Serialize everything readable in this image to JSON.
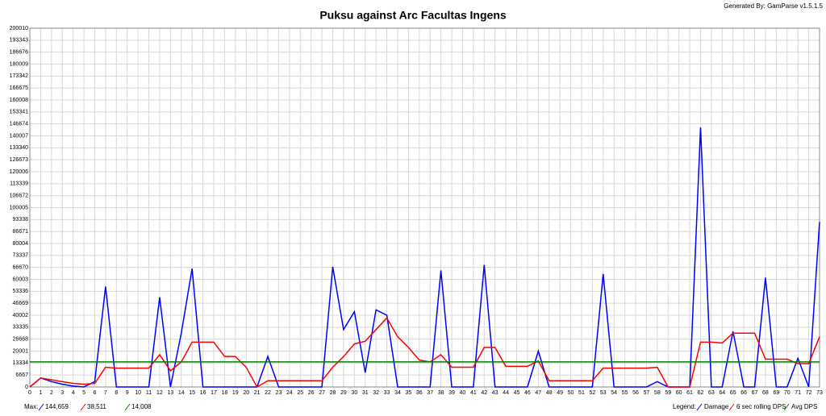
{
  "chart_data": {
    "type": "line",
    "title": "Puksu against Arc Facultas Ingens",
    "credit": "Generated By: GamParse v1.5.1.5",
    "max_label": "Max:",
    "legend_label": "Legend:",
    "x": [
      0,
      1,
      2,
      3,
      4,
      5,
      6,
      7,
      8,
      9,
      10,
      11,
      12,
      13,
      14,
      15,
      16,
      17,
      18,
      19,
      20,
      21,
      22,
      23,
      24,
      25,
      26,
      27,
      28,
      29,
      30,
      31,
      32,
      33,
      34,
      35,
      36,
      37,
      38,
      39,
      40,
      41,
      42,
      43,
      44,
      45,
      46,
      47,
      48,
      49,
      50,
      51,
      52,
      53,
      54,
      55,
      56,
      57,
      58,
      59,
      60,
      61,
      62,
      63,
      64,
      65,
      66,
      67,
      68,
      69,
      70,
      71,
      72,
      73
    ],
    "xlim": [
      0,
      73
    ],
    "xticks": [
      0,
      1,
      2,
      3,
      4,
      5,
      6,
      7,
      8,
      9,
      10,
      11,
      12,
      13,
      14,
      15,
      16,
      17,
      18,
      19,
      20,
      21,
      22,
      23,
      24,
      25,
      26,
      27,
      28,
      29,
      30,
      31,
      32,
      33,
      34,
      35,
      36,
      37,
      38,
      39,
      40,
      41,
      42,
      43,
      44,
      45,
      46,
      47,
      48,
      49,
      50,
      51,
      52,
      53,
      54,
      55,
      56,
      57,
      58,
      59,
      60,
      61,
      62,
      63,
      64,
      65,
      66,
      67,
      68,
      69,
      70,
      71,
      72,
      73
    ],
    "ylim": [
      0,
      200010
    ],
    "yticks": [
      0,
      6667,
      13334,
      20001,
      26668,
      33335,
      40002,
      46669,
      53336,
      60003,
      66670,
      73337,
      80004,
      86671,
      93338,
      100005,
      106672,
      113339,
      120006,
      126673,
      133340,
      140007,
      146674,
      153341,
      160008,
      166675,
      173342,
      180009,
      186676,
      193343,
      200010
    ],
    "grid": true,
    "series": [
      {
        "name": "Damage",
        "color": "#0000ff",
        "max": 144659,
        "max_label": "144,659",
        "values": [
          0,
          5000,
          3000,
          1500,
          500,
          0,
          3000,
          56000,
          0,
          0,
          0,
          0,
          50000,
          0,
          30000,
          66000,
          0,
          0,
          0,
          0,
          0,
          0,
          17000,
          0,
          0,
          0,
          0,
          0,
          67000,
          32000,
          42000,
          8000,
          43000,
          40000,
          0,
          0,
          0,
          0,
          65000,
          0,
          0,
          0,
          68000,
          0,
          0,
          0,
          0,
          20000,
          0,
          0,
          0,
          0,
          0,
          63000,
          0,
          0,
          0,
          0,
          3000,
          0,
          0,
          0,
          144659,
          0,
          0,
          31000,
          0,
          0,
          61000,
          0,
          0,
          16000,
          0,
          92000
        ]
      },
      {
        "name": "6 sec rolling DPS",
        "color": "#ff0000",
        "max": 38511,
        "max_label": "38,511",
        "values": [
          0,
          5000,
          4000,
          3000,
          2000,
          1500,
          2000,
          11000,
          10500,
          10500,
          10500,
          10500,
          18000,
          9000,
          14000,
          25000,
          25000,
          25000,
          17000,
          17000,
          11000,
          0,
          3500,
          3500,
          3500,
          3500,
          3500,
          3500,
          11000,
          17000,
          24000,
          25500,
          32000,
          38511,
          28000,
          22000,
          15000,
          14000,
          18000,
          11000,
          11000,
          11000,
          22000,
          22000,
          11500,
          11500,
          11500,
          14500,
          3500,
          3500,
          3500,
          3500,
          3500,
          10500,
          10500,
          10500,
          10500,
          10500,
          11000,
          0,
          0,
          0,
          25000,
          25000,
          24500,
          30000,
          30000,
          30000,
          15500,
          15500,
          15500,
          13000,
          13000,
          28000
        ]
      },
      {
        "name": "Avg DPS",
        "color": "#008000",
        "value": 14008,
        "max": 14008,
        "max_label": "14,008"
      }
    ]
  }
}
